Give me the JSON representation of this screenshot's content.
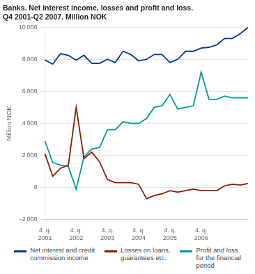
{
  "chart_data": {
    "type": "line",
    "title": "Banks. Net interest income, losses and profit and loss.\nQ4 2001-Q2 2007. Million NOK",
    "y_label": "Million NOK",
    "categories": [
      "4. q.\n2001",
      null,
      null,
      null,
      "4. q.\n2002",
      null,
      null,
      null,
      "4. q.\n2003",
      null,
      null,
      null,
      "4. q.\n2004",
      null,
      null,
      null,
      "4. q.\n2005",
      null,
      null,
      null,
      "4. q.\n2006",
      null,
      null,
      null,
      null,
      null,
      null
    ],
    "series": [
      {
        "name": "Net interest and credit\ncommission income",
        "color": "#003399",
        "values": [
          7950,
          7700,
          8350,
          8250,
          7950,
          8250,
          7750,
          7750,
          8000,
          7800,
          8500,
          8300,
          7900,
          8000,
          8300,
          8300,
          7800,
          8000,
          8500,
          8500,
          8700,
          8750,
          8900,
          9300,
          9300,
          9600,
          10000
        ]
      },
      {
        "name": "Losses on loans,\nguarantees etc.",
        "color": "#8B1A00",
        "values": [
          2100,
          700,
          1200,
          1400,
          5000,
          1800,
          2200,
          1600,
          500,
          300,
          300,
          300,
          200,
          -700,
          -500,
          -400,
          -200,
          -300,
          -200,
          -100,
          -200,
          -200,
          -200,
          100,
          200,
          150,
          250
        ]
      },
      {
        "name": "Profit and loss\nfor the financial\nperiod",
        "color": "#009999",
        "values": [
          2900,
          1550,
          1400,
          1300,
          -100,
          1900,
          2400,
          2500,
          3600,
          3600,
          4100,
          4000,
          4000,
          4300,
          5000,
          5100,
          5800,
          4900,
          5000,
          5100,
          7200,
          5500,
          5500,
          5700,
          5600,
          5600,
          5600
        ]
      }
    ],
    "ylim": [
      -2000,
      10000
    ],
    "yticks": [
      {
        "value": -2000,
        "label": "−2 000"
      },
      0,
      {
        "value": 2000,
        "label": "2 000"
      },
      {
        "value": 4000,
        "label": "4 000"
      },
      {
        "value": 6000,
        "label": "6 000"
      },
      {
        "value": 8000,
        "label": "8 000"
      },
      {
        "value": 10000,
        "label": "10 000"
      }
    ],
    "grid": true,
    "legend": "bottom"
  }
}
